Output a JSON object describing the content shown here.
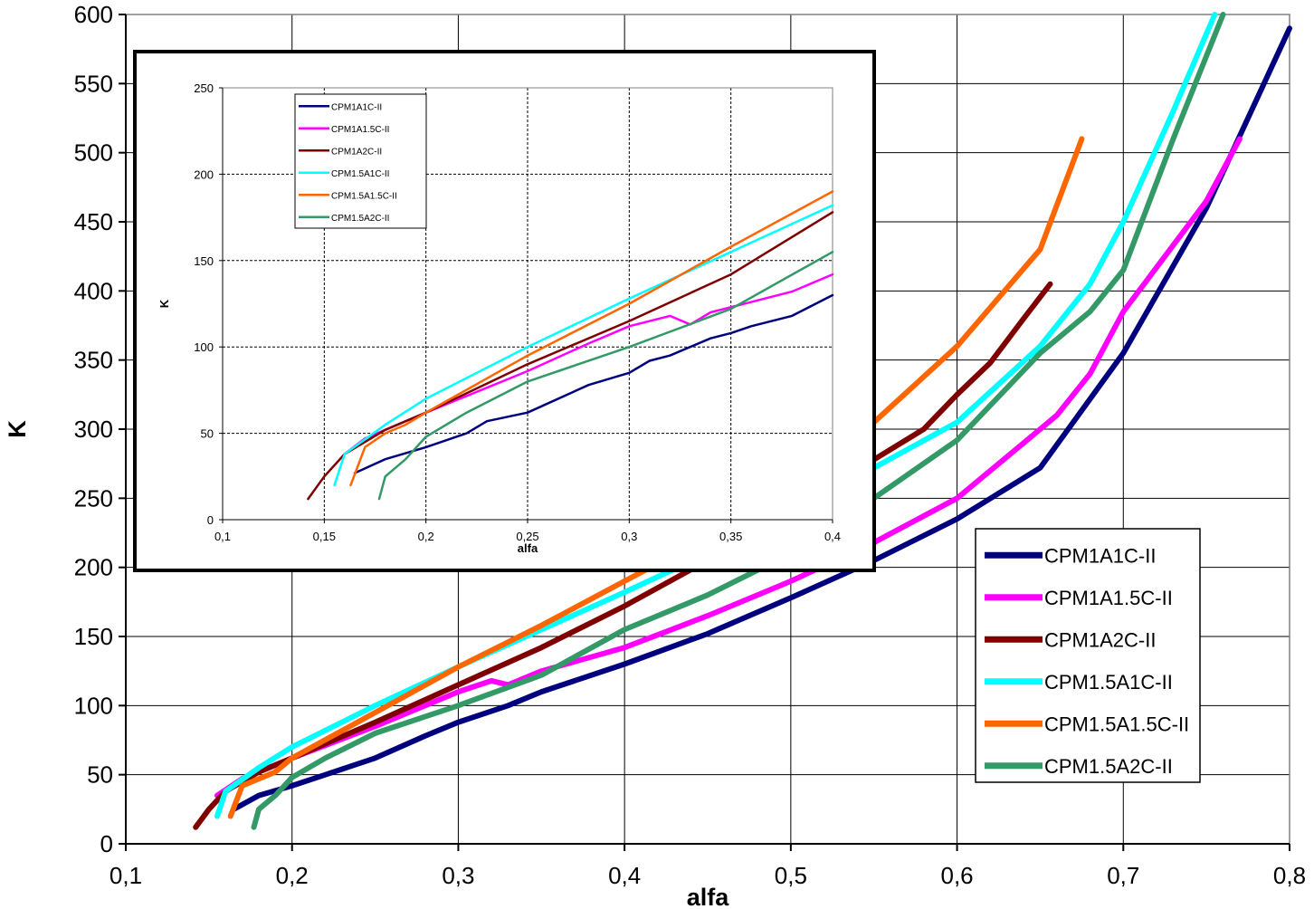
{
  "chart_data": [
    {
      "type": "line",
      "role": "main",
      "xlabel": "alfa",
      "ylabel": "K",
      "xlim": [
        0.1,
        0.8
      ],
      "ylim": [
        0,
        600
      ],
      "x_ticks": [
        "0,1",
        "0,2",
        "0,3",
        "0,4",
        "0,5",
        "0,6",
        "0,7",
        "0,8"
      ],
      "y_ticks": [
        "0",
        "50",
        "100",
        "150",
        "200",
        "250",
        "300",
        "350",
        "400",
        "450",
        "500",
        "550",
        "600"
      ],
      "grid": true,
      "legend_position": "bottom-right",
      "series": [
        {
          "name": "CPM1A1C-II",
          "color": "#00007f",
          "points": [
            [
              0.165,
              25
            ],
            [
              0.18,
              35
            ],
            [
              0.2,
              42
            ],
            [
              0.22,
              50
            ],
            [
              0.25,
              62
            ],
            [
              0.28,
              78
            ],
            [
              0.3,
              88
            ],
            [
              0.33,
              100
            ],
            [
              0.35,
              110
            ],
            [
              0.4,
              130
            ],
            [
              0.45,
              152
            ],
            [
              0.5,
              178
            ],
            [
              0.55,
              205
            ],
            [
              0.6,
              235
            ],
            [
              0.65,
              272
            ],
            [
              0.7,
              355
            ],
            [
              0.75,
              460
            ],
            [
              0.8,
              590
            ]
          ]
        },
        {
          "name": "CPM1A1.5C-II",
          "color": "#ff00ff",
          "points": [
            [
              0.155,
              35
            ],
            [
              0.17,
              47
            ],
            [
              0.2,
              62
            ],
            [
              0.25,
              85
            ],
            [
              0.3,
              110
            ],
            [
              0.32,
              118
            ],
            [
              0.33,
              115
            ],
            [
              0.35,
              125
            ],
            [
              0.4,
              142
            ],
            [
              0.45,
              165
            ],
            [
              0.5,
              190
            ],
            [
              0.55,
              218
            ],
            [
              0.6,
              250
            ],
            [
              0.64,
              290
            ],
            [
              0.66,
              310
            ],
            [
              0.68,
              340
            ],
            [
              0.7,
              385
            ],
            [
              0.75,
              465
            ],
            [
              0.77,
              510
            ]
          ]
        },
        {
          "name": "CPM1A2C-II",
          "color": "#7f0000",
          "points": [
            [
              0.142,
              12
            ],
            [
              0.15,
              25
            ],
            [
              0.16,
              38
            ],
            [
              0.18,
              52
            ],
            [
              0.2,
              62
            ],
            [
              0.25,
              88
            ],
            [
              0.3,
              115
            ],
            [
              0.35,
              142
            ],
            [
              0.4,
              172
            ],
            [
              0.45,
              205
            ],
            [
              0.5,
              240
            ],
            [
              0.55,
              278
            ],
            [
              0.58,
              300
            ],
            [
              0.6,
              325
            ],
            [
              0.62,
              348
            ],
            [
              0.64,
              380
            ],
            [
              0.656,
              405
            ]
          ]
        },
        {
          "name": "CPM1.5A1C-II",
          "color": "#00ffff",
          "points": [
            [
              0.155,
              20
            ],
            [
              0.16,
              38
            ],
            [
              0.18,
              55
            ],
            [
              0.2,
              70
            ],
            [
              0.25,
              100
            ],
            [
              0.3,
              128
            ],
            [
              0.35,
              155
            ],
            [
              0.4,
              182
            ],
            [
              0.45,
              210
            ],
            [
              0.5,
              240
            ],
            [
              0.55,
              272
            ],
            [
              0.6,
              305
            ],
            [
              0.65,
              360
            ],
            [
              0.68,
              405
            ],
            [
              0.7,
              450
            ],
            [
              0.73,
              530
            ],
            [
              0.755,
              600
            ]
          ]
        },
        {
          "name": "CPM1.5A1.5C-II",
          "color": "#ff6600",
          "points": [
            [
              0.163,
              20
            ],
            [
              0.17,
              42
            ],
            [
              0.19,
              52
            ],
            [
              0.2,
              62
            ],
            [
              0.25,
              95
            ],
            [
              0.3,
              128
            ],
            [
              0.35,
              158
            ],
            [
              0.4,
              190
            ],
            [
              0.45,
              222
            ],
            [
              0.5,
              262
            ],
            [
              0.55,
              305
            ],
            [
              0.6,
              360
            ],
            [
              0.65,
              430
            ],
            [
              0.675,
              510
            ]
          ]
        },
        {
          "name": "CPM1.5A2C-II",
          "color": "#339966",
          "points": [
            [
              0.177,
              12
            ],
            [
              0.18,
              25
            ],
            [
              0.19,
              35
            ],
            [
              0.2,
              48
            ],
            [
              0.22,
              62
            ],
            [
              0.25,
              80
            ],
            [
              0.3,
              100
            ],
            [
              0.35,
              122
            ],
            [
              0.4,
              155
            ],
            [
              0.45,
              180
            ],
            [
              0.5,
              210
            ],
            [
              0.55,
              250
            ],
            [
              0.6,
              292
            ],
            [
              0.65,
              355
            ],
            [
              0.68,
              385
            ],
            [
              0.7,
              415
            ],
            [
              0.73,
              510
            ],
            [
              0.76,
              600
            ]
          ]
        }
      ]
    },
    {
      "type": "line",
      "role": "inset",
      "xlabel": "alfa",
      "ylabel": "K",
      "xlim": [
        0.1,
        0.4
      ],
      "ylim": [
        0,
        250
      ],
      "x_ticks": [
        "0,1",
        "0,15",
        "0,2",
        "0,25",
        "0,3",
        "0,35",
        "0,4"
      ],
      "y_ticks": [
        "0",
        "50",
        "100",
        "150",
        "200",
        "250"
      ],
      "grid": true,
      "legend_position": "top-left",
      "series": [
        {
          "name": "CPM1A1C-II",
          "color": "#00007f",
          "points": [
            [
              0.165,
              27
            ],
            [
              0.18,
              35
            ],
            [
              0.2,
              42
            ],
            [
              0.22,
              50
            ],
            [
              0.23,
              57
            ],
            [
              0.25,
              62
            ],
            [
              0.28,
              78
            ],
            [
              0.3,
              85
            ],
            [
              0.31,
              92
            ],
            [
              0.32,
              95
            ],
            [
              0.33,
              100
            ],
            [
              0.34,
              105
            ],
            [
              0.35,
              108
            ],
            [
              0.36,
              112
            ],
            [
              0.38,
              118
            ],
            [
              0.4,
              130
            ]
          ]
        },
        {
          "name": "CPM1A1.5C-II",
          "color": "#ff00ff",
          "points": [
            [
              0.16,
              38
            ],
            [
              0.17,
              47
            ],
            [
              0.2,
              62
            ],
            [
              0.25,
              86
            ],
            [
              0.28,
              102
            ],
            [
              0.3,
              112
            ],
            [
              0.32,
              118
            ],
            [
              0.33,
              113
            ],
            [
              0.34,
              120
            ],
            [
              0.36,
              126
            ],
            [
              0.38,
              132
            ],
            [
              0.4,
              142
            ]
          ]
        },
        {
          "name": "CPM1A2C-II",
          "color": "#7f0000",
          "points": [
            [
              0.142,
              12
            ],
            [
              0.15,
              25
            ],
            [
              0.16,
              38
            ],
            [
              0.18,
              52
            ],
            [
              0.2,
              62
            ],
            [
              0.25,
              90
            ],
            [
              0.3,
              115
            ],
            [
              0.35,
              142
            ],
            [
              0.4,
              178
            ]
          ]
        },
        {
          "name": "CPM1.5A1C-II",
          "color": "#00ffff",
          "points": [
            [
              0.155,
              20
            ],
            [
              0.16,
              38
            ],
            [
              0.18,
              55
            ],
            [
              0.2,
              70
            ],
            [
              0.25,
              100
            ],
            [
              0.3,
              128
            ],
            [
              0.35,
              155
            ],
            [
              0.4,
              182
            ]
          ]
        },
        {
          "name": "CPM1.5A1.5C-II",
          "color": "#ff6600",
          "points": [
            [
              0.163,
              20
            ],
            [
              0.17,
              42
            ],
            [
              0.18,
              50
            ],
            [
              0.19,
              55
            ],
            [
              0.2,
              62
            ],
            [
              0.25,
              95
            ],
            [
              0.3,
              125
            ],
            [
              0.35,
              158
            ],
            [
              0.4,
              190
            ]
          ]
        },
        {
          "name": "CPM1.5A2C-II",
          "color": "#339966",
          "points": [
            [
              0.177,
              12
            ],
            [
              0.18,
              25
            ],
            [
              0.19,
              35
            ],
            [
              0.2,
              48
            ],
            [
              0.22,
              62
            ],
            [
              0.25,
              80
            ],
            [
              0.3,
              100
            ],
            [
              0.35,
              122
            ],
            [
              0.4,
              155
            ]
          ]
        }
      ]
    }
  ]
}
